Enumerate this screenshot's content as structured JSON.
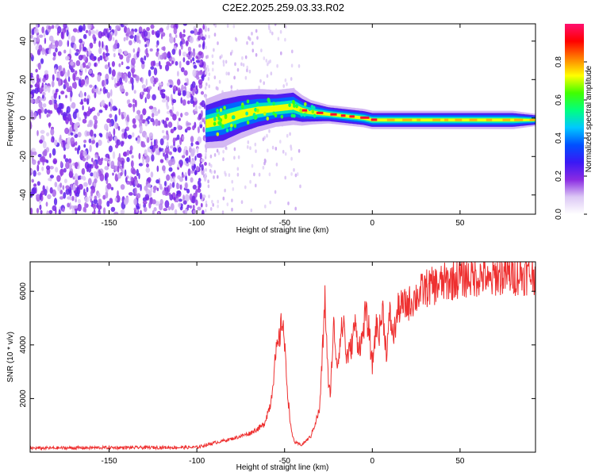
{
  "title": "C2E2.2025.259.03.33.R02",
  "chart_data": [
    {
      "type": "heatmap",
      "xlabel": "Height of straight line (km)",
      "ylabel": "Frequency (Hz)",
      "xlim": [
        -195,
        93
      ],
      "ylim": [
        -50,
        49
      ],
      "xticks": [
        -150,
        -100,
        -50,
        0,
        50
      ],
      "yticks": [
        -40,
        -20,
        0,
        20,
        40
      ],
      "noise_region_x": [
        -195,
        -95
      ],
      "signal_track": {
        "x": [
          -95,
          -85,
          -75,
          -65,
          -55,
          -45,
          -40,
          -35,
          -25,
          -15,
          -5,
          0,
          10,
          20,
          30,
          40,
          50,
          60,
          70,
          80,
          93
        ],
        "y": [
          -3,
          -1,
          2,
          4,
          5,
          6,
          4,
          3,
          2,
          1,
          0,
          -1,
          -1,
          -1,
          -1,
          -1,
          -1,
          -1,
          -1,
          -1,
          -1
        ],
        "width": [
          8,
          9,
          8,
          7,
          6,
          6,
          5,
          4,
          3,
          3,
          3,
          3,
          3,
          3,
          3,
          3,
          3,
          3,
          3,
          3,
          2
        ]
      },
      "colorbar": {
        "label": "Normalized spectral amplitude",
        "range": [
          0,
          1
        ],
        "ticks": [
          "0.0",
          "0.2",
          "0.4",
          "0.6",
          "0.8"
        ],
        "colors": [
          "#ffffff",
          "#dcc8f5",
          "#8a2be2",
          "#3a18f5",
          "#0050ff",
          "#00c8ff",
          "#00ff80",
          "#40ff00",
          "#ffff00",
          "#ff8000",
          "#ff0000",
          "#ff1070"
        ]
      }
    },
    {
      "type": "line",
      "xlabel": "Height of straight line (km)",
      "ylabel": "SNR (10 * v/v)",
      "xlim": [
        -195,
        93
      ],
      "ylim": [
        0,
        7100
      ],
      "xticks": [
        -150,
        -100,
        -50,
        0,
        50
      ],
      "yticks": [
        2000,
        4000,
        6000
      ],
      "color": "#ee3030",
      "series": [
        {
          "x": [
            -195,
            -150,
            -100,
            -90,
            -80,
            -70,
            -62,
            -58,
            -55,
            -53,
            -51,
            -50,
            -48,
            -46,
            -44,
            -42,
            -40,
            -35,
            -30,
            -28,
            -27,
            -26,
            -25,
            -24,
            -22,
            -20,
            -18,
            -16,
            -15,
            -12,
            -10,
            -8,
            -6,
            -4,
            -2,
            0,
            2,
            4,
            6,
            8,
            10,
            12,
            15,
            20,
            25,
            30,
            40,
            50,
            60,
            65,
            66,
            70,
            80,
            93
          ],
          "y": [
            150,
            170,
            180,
            350,
            500,
            700,
            1000,
            1800,
            3600,
            4200,
            5100,
            3900,
            2000,
            700,
            350,
            300,
            280,
            600,
            1600,
            4300,
            5700,
            4200,
            2400,
            2200,
            4700,
            3200,
            4400,
            4900,
            3500,
            3900,
            4800,
            4000,
            4100,
            5200,
            4600,
            3200,
            4700,
            4500,
            5300,
            3700,
            5100,
            4300,
            5400,
            5500,
            5800,
            6100,
            6300,
            6500,
            6550,
            6600,
            6200,
            6600,
            6600,
            6650
          ]
        }
      ]
    }
  ]
}
